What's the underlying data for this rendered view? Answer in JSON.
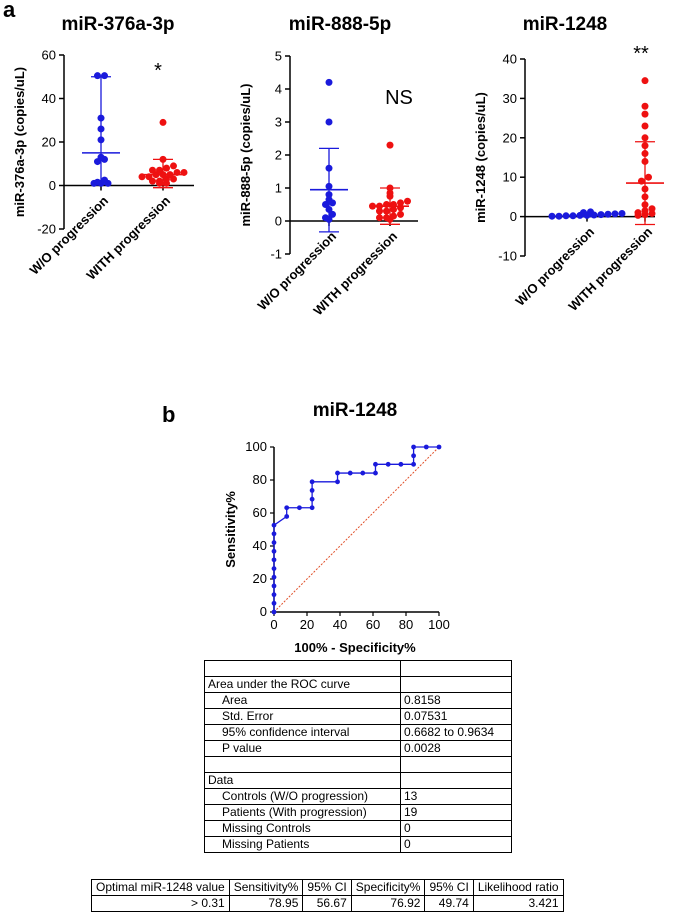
{
  "panel_labels": {
    "a": "a",
    "b": "b"
  },
  "colors": {
    "group1": "#1a1adc",
    "group2": "#ee1111",
    "axis": "#000000",
    "roc": "#1a1adc",
    "reference": "#e0502a"
  },
  "chart_data": [
    {
      "type": "scatter",
      "title": "miR-376a-3p",
      "ylabel": "miR-376a-3p (copies/uL)",
      "ylim": [
        -20,
        60
      ],
      "yticks": [
        -20,
        0,
        20,
        40,
        60
      ],
      "categories": [
        "W/O progression",
        "WITH progression"
      ],
      "significance": "*",
      "series": [
        {
          "name": "W/O progression",
          "mean": 15,
          "sd_low": 0.5,
          "sd_high": 50,
          "values": [
            50.5,
            50.5,
            31,
            26,
            21,
            13,
            12,
            11,
            2.5,
            1.5,
            1,
            1,
            1
          ]
        },
        {
          "name": "WITH progression",
          "mean": 5,
          "sd_low": -1,
          "sd_high": 12,
          "values": [
            29,
            12,
            9,
            8,
            7,
            7,
            6,
            6,
            5,
            5,
            5,
            4,
            4,
            3,
            3,
            2,
            2,
            1,
            1
          ]
        }
      ]
    },
    {
      "type": "scatter",
      "title": "miR-888-5p",
      "ylabel": "miR-888-5p (copies/uL)",
      "ylim": [
        -1,
        5
      ],
      "yticks": [
        -1,
        0,
        1,
        2,
        3,
        4,
        5
      ],
      "categories": [
        "W/O progression",
        "WITH progression"
      ],
      "significance": "NS",
      "series": [
        {
          "name": "W/O progression",
          "mean": 0.95,
          "sd_low": -0.33,
          "sd_high": 2.2,
          "values": [
            4.2,
            3.0,
            1.6,
            1.05,
            0.8,
            0.65,
            0.55,
            0.5,
            0.35,
            0.2,
            0.1,
            0.05
          ]
        },
        {
          "name": "WITH progression",
          "mean": 0.45,
          "sd_low": -0.1,
          "sd_high": 1.0,
          "values": [
            2.3,
            1.0,
            0.85,
            0.75,
            0.6,
            0.55,
            0.5,
            0.5,
            0.45,
            0.45,
            0.4,
            0.35,
            0.3,
            0.3,
            0.2,
            0.15,
            0.1,
            0.1,
            0.05
          ]
        }
      ]
    },
    {
      "type": "scatter",
      "title": "miR-1248",
      "ylabel": "miR-1248 (copies/uL)",
      "ylim": [
        -10,
        40
      ],
      "yticks": [
        -10,
        0,
        10,
        20,
        30,
        40
      ],
      "categories": [
        "W/O progression",
        "WITH progression"
      ],
      "significance": "**",
      "series": [
        {
          "name": "W/O progression",
          "mean": 0.3,
          "sd_low": 0,
          "sd_high": 0.7,
          "values": [
            1.2,
            1.0,
            0.8,
            0.7,
            0.6,
            0.5,
            0.4,
            0.3,
            0.3,
            0.2,
            0.2,
            0.1,
            0.1
          ]
        },
        {
          "name": "WITH progression",
          "mean": 8.5,
          "sd_low": -2,
          "sd_high": 19,
          "values": [
            34.5,
            28,
            26,
            23,
            20,
            18,
            16,
            14,
            10,
            9,
            7,
            5,
            3,
            2,
            1.5,
            1,
            0.8,
            0.5,
            0.3
          ]
        }
      ]
    },
    {
      "type": "line",
      "title": "miR-1248",
      "xlabel": "100% - Specificity%",
      "ylabel": "Sensitivity%",
      "xlim": [
        0,
        100
      ],
      "ylim": [
        0,
        100
      ],
      "ticks": [
        0,
        20,
        40,
        60,
        80,
        100
      ],
      "series": [
        {
          "name": "ROC",
          "x": [
            0,
            0,
            0,
            0,
            0,
            0,
            0,
            0,
            0,
            0,
            0,
            7.7,
            7.7,
            15.4,
            23.1,
            23.1,
            23.1,
            23.1,
            38.5,
            38.5,
            46.2,
            53.8,
            61.5,
            61.5,
            69.2,
            76.9,
            84.6,
            84.6,
            84.6,
            92.3,
            100
          ],
          "y": [
            0,
            5.3,
            10.5,
            15.8,
            21.1,
            26.3,
            31.6,
            36.8,
            42.1,
            47.4,
            52.6,
            57.9,
            63.2,
            63.2,
            63.2,
            68.4,
            73.7,
            78.9,
            78.9,
            84.2,
            84.2,
            84.2,
            84.2,
            89.5,
            89.5,
            89.5,
            89.5,
            94.7,
            100,
            100,
            100
          ]
        },
        {
          "name": "Reference",
          "x": [
            0,
            100
          ],
          "y": [
            0,
            100
          ]
        }
      ]
    }
  ],
  "roc_table": {
    "rows": [
      {
        "label": "",
        "value": "",
        "indent": false
      },
      {
        "label": "Area under the ROC curve",
        "value": "",
        "indent": false
      },
      {
        "label": "Area",
        "value": "0.8158",
        "indent": true
      },
      {
        "label": "Std. Error",
        "value": "0.07531",
        "indent": true
      },
      {
        "label": "95% confidence interval",
        "value": "0.6682 to 0.9634",
        "indent": true
      },
      {
        "label": "P value",
        "value": "0.0028",
        "indent": true
      },
      {
        "label": "",
        "value": "",
        "indent": false
      },
      {
        "label": "Data",
        "value": "",
        "indent": false
      },
      {
        "label": "Controls (W/O progression)",
        "value": "13",
        "indent": true
      },
      {
        "label": "Patients (With progression)",
        "value": "19",
        "indent": true
      },
      {
        "label": "Missing Controls",
        "value": "0",
        "indent": true
      },
      {
        "label": "Missing Patients",
        "value": "0",
        "indent": true
      }
    ]
  },
  "optimal_table": {
    "headers": [
      "Optimal miR-1248 value",
      "Sensitivity%",
      "95% CI",
      "Specificity%",
      "95% CI",
      "Likelihood ratio"
    ],
    "values": [
      "> 0.31",
      "78.95",
      "56.67",
      "76.92",
      "49.74",
      "3.421"
    ]
  }
}
